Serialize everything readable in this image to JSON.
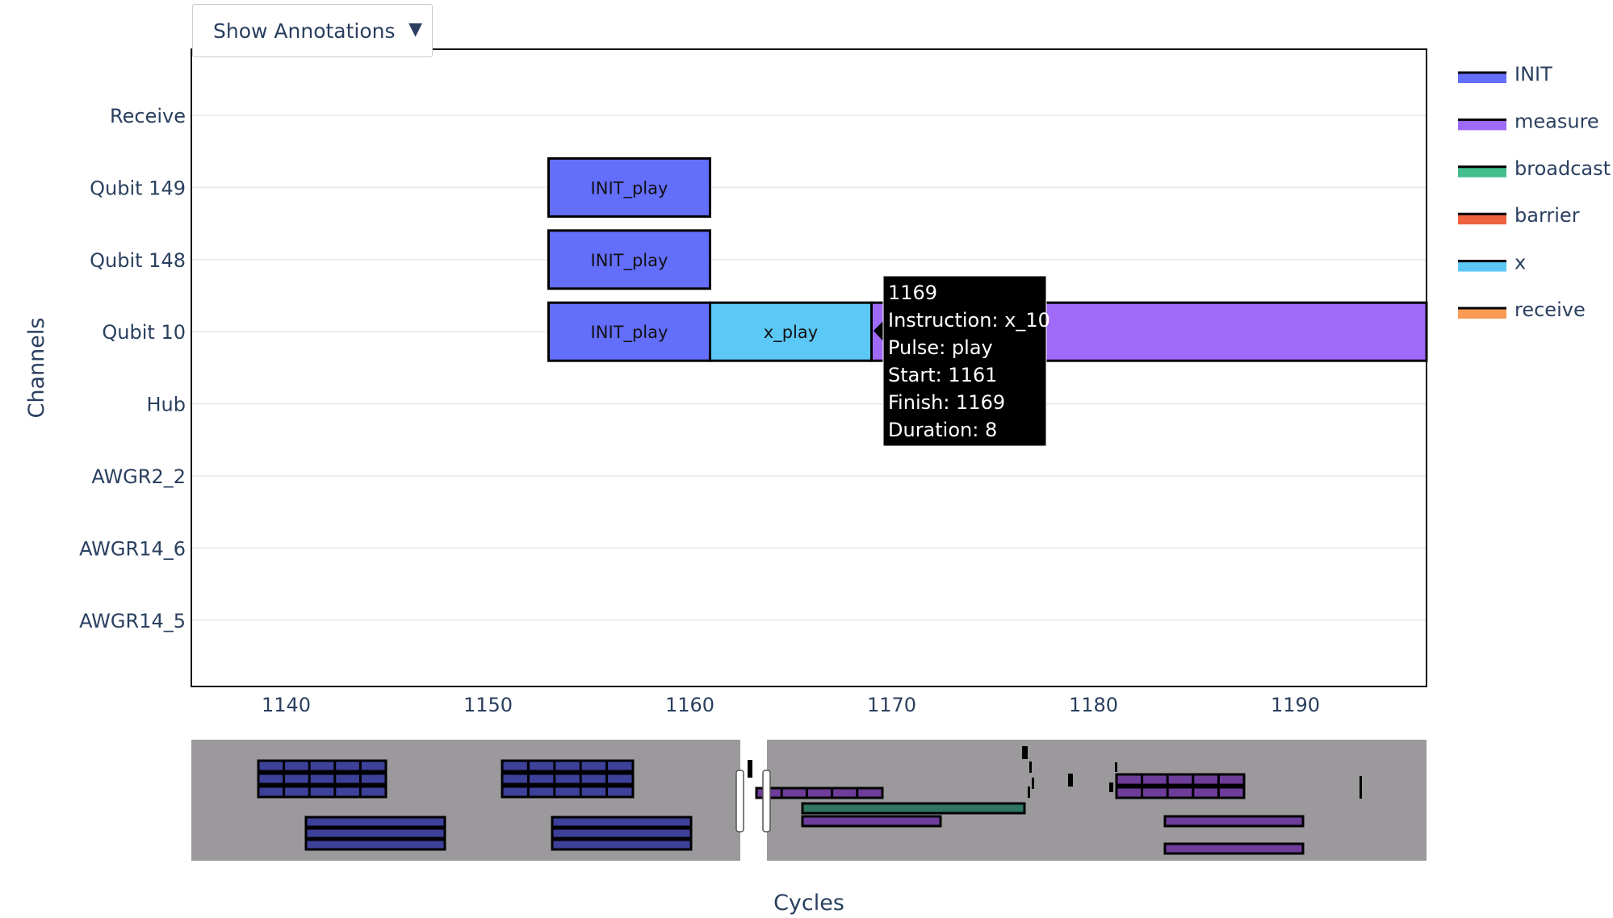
{
  "annotation_menu": {
    "label": "Show Annotations",
    "arrow_icon": "triangle-down-icon"
  },
  "colors": {
    "INIT": "#636efa",
    "measure": "#a06af9",
    "broadcast": "#43bf8f",
    "barrier": "#ee6240",
    "x": "#5cc8f5",
    "receive": "#f99a55",
    "rangeslider_bg": "#9b999b",
    "rangeslider_init": "#3d4199",
    "rangeslider_measure": "#6e3d9a",
    "rangeslider_broadcast": "#2f7561",
    "tooltip_bg": "#000000"
  },
  "chart_data": {
    "type": "timeline",
    "xlabel": "Cycles",
    "ylabel": "Channels",
    "xlim": [
      1135.3,
      1196.5
    ],
    "x_ticks": [
      1140,
      1150,
      1160,
      1170,
      1180,
      1190
    ],
    "channels": [
      "Receive",
      "Qubit 149",
      "Qubit 148",
      "Qubit 10",
      "Hub",
      "AWGR2_2",
      "AWGR14_6",
      "AWGR14_5"
    ],
    "legend": [
      "INIT",
      "measure",
      "broadcast",
      "barrier",
      "x",
      "receive"
    ],
    "legend_position": "right",
    "grid": true,
    "bars": [
      {
        "channel": "Qubit 149",
        "category": "INIT",
        "label": "INIT_play",
        "start": 1153,
        "finish": 1161
      },
      {
        "channel": "Qubit 148",
        "category": "INIT",
        "label": "INIT_play",
        "start": 1153,
        "finish": 1161
      },
      {
        "channel": "Qubit 10",
        "category": "INIT",
        "label": "INIT_play",
        "start": 1153,
        "finish": 1161
      },
      {
        "channel": "Qubit 10",
        "category": "x",
        "label": "x_play",
        "start": 1161,
        "finish": 1169
      },
      {
        "channel": "Qubit 10",
        "category": "measure",
        "label": "",
        "start": 1169,
        "finish": 1196.5
      }
    ],
    "tooltip": {
      "value": "1169",
      "lines": [
        "Instruction: x_10",
        "Pulse: play",
        "Start: 1161",
        "Finish: 1169",
        "Duration: 8"
      ]
    }
  }
}
